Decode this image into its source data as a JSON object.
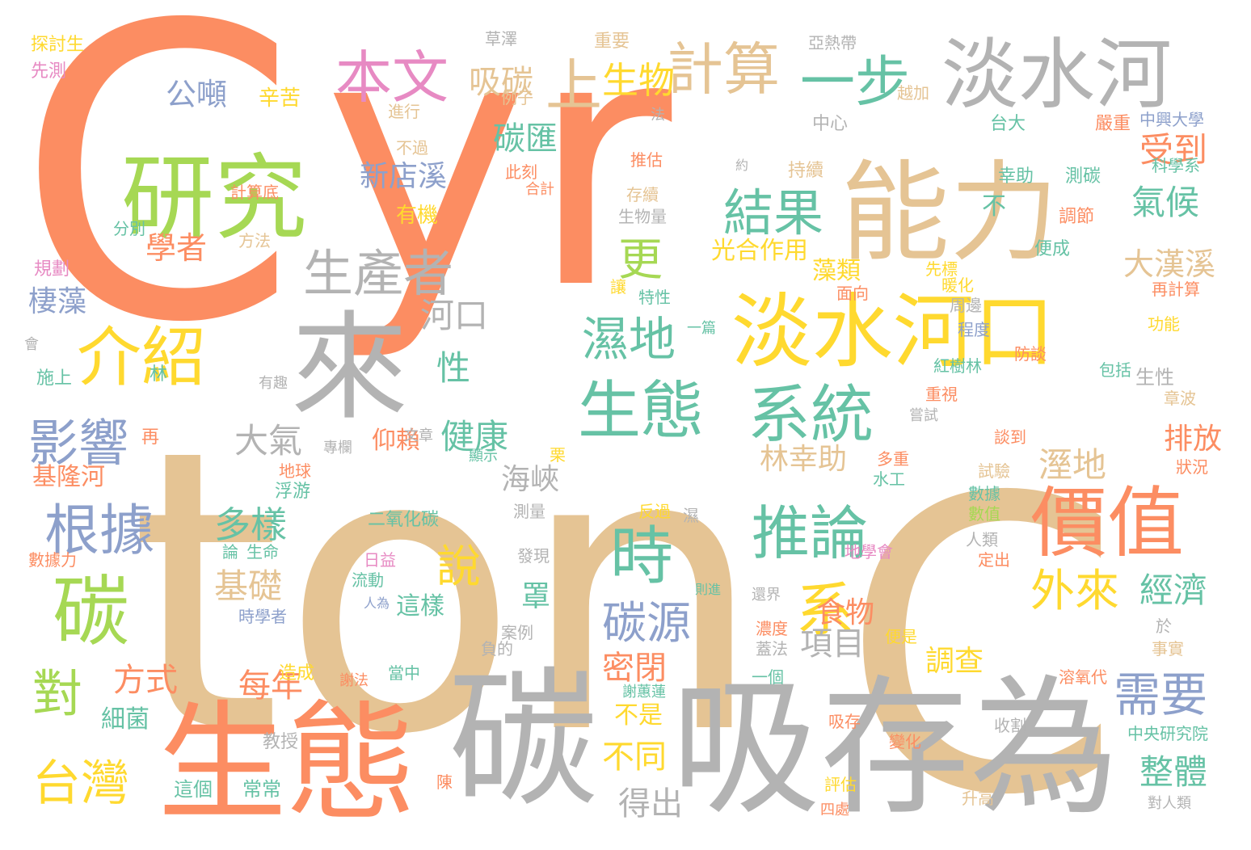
{
  "colors": {
    "orange": "#fc8d62",
    "tan": "#e5c494",
    "gray": "#b3b3b3",
    "green": "#a6d854",
    "yellow": "#ffd92f",
    "teal": "#66c2a5",
    "blue": "#8da0cb",
    "pink": "#e78ac3"
  },
  "words": [
    {
      "text": "C",
      "color": "orange"
    },
    {
      "text": "yr",
      "color": "orange"
    },
    {
      "text": "ton",
      "color": "tan"
    },
    {
      "text": "C",
      "color": "tan"
    },
    {
      "text": "碳",
      "color": "gray"
    },
    {
      "text": "吸存為",
      "color": "gray"
    },
    {
      "text": "生態",
      "color": "orange"
    },
    {
      "text": "研究",
      "color": "green"
    },
    {
      "text": "來",
      "color": "gray"
    },
    {
      "text": "能力",
      "color": "tan"
    },
    {
      "text": "淡水河",
      "color": "gray"
    },
    {
      "text": "淡水河口",
      "color": "yellow"
    },
    {
      "text": "價值",
      "color": "orange"
    },
    {
      "text": "生態",
      "color": "teal"
    },
    {
      "text": "系統",
      "color": "teal"
    },
    {
      "text": "介紹",
      "color": "yellow"
    },
    {
      "text": "碳",
      "color": "green"
    },
    {
      "text": "本文",
      "color": "pink"
    },
    {
      "text": "計算",
      "color": "tan"
    },
    {
      "text": "一步",
      "color": "teal"
    },
    {
      "text": "生產者",
      "color": "gray"
    },
    {
      "text": "結果",
      "color": "teal"
    },
    {
      "text": "推論",
      "color": "teal"
    },
    {
      "text": "根據",
      "color": "blue"
    },
    {
      "text": "影響",
      "color": "blue"
    },
    {
      "text": "時",
      "color": "teal"
    },
    {
      "text": "系",
      "color": "yellow"
    },
    {
      "text": "對",
      "color": "green"
    },
    {
      "text": "台灣",
      "color": "yellow"
    },
    {
      "text": "需要",
      "color": "blue"
    },
    {
      "text": "上",
      "color": "tan"
    },
    {
      "text": "生物",
      "color": "yellow"
    },
    {
      "text": "吸碳",
      "color": "tan"
    },
    {
      "text": "碳匯",
      "color": "teal"
    },
    {
      "text": "公噸",
      "color": "blue"
    },
    {
      "text": "學者",
      "color": "orange"
    },
    {
      "text": "更",
      "color": "green"
    },
    {
      "text": "河口",
      "color": "gray"
    },
    {
      "text": "濕地",
      "color": "teal"
    },
    {
      "text": "受到",
      "color": "orange"
    },
    {
      "text": "氣候",
      "color": "teal"
    },
    {
      "text": "大漢溪",
      "color": "tan"
    },
    {
      "text": "外來",
      "color": "yellow"
    },
    {
      "text": "經濟",
      "color": "teal"
    },
    {
      "text": "整體",
      "color": "teal"
    },
    {
      "text": "碳源",
      "color": "blue"
    },
    {
      "text": "說",
      "color": "yellow"
    },
    {
      "text": "多樣",
      "color": "teal"
    },
    {
      "text": "基礎",
      "color": "tan"
    },
    {
      "text": "每年",
      "color": "orange"
    },
    {
      "text": "方式",
      "color": "orange"
    },
    {
      "text": "項目",
      "color": "gray"
    },
    {
      "text": "密閉",
      "color": "orange"
    },
    {
      "text": "不同",
      "color": "yellow"
    },
    {
      "text": "得出",
      "color": "gray"
    },
    {
      "text": "健康",
      "color": "teal"
    },
    {
      "text": "性",
      "color": "teal"
    },
    {
      "text": "大氣",
      "color": "gray"
    },
    {
      "text": "林幸助",
      "color": "tan"
    },
    {
      "text": "溼地",
      "color": "tan"
    },
    {
      "text": "排放",
      "color": "orange"
    },
    {
      "text": "調查",
      "color": "yellow"
    },
    {
      "text": "食物",
      "color": "orange"
    },
    {
      "text": "罩",
      "color": "teal"
    },
    {
      "text": "海峽",
      "color": "gray"
    },
    {
      "text": "新店溪",
      "color": "blue"
    },
    {
      "text": "棲藻",
      "color": "blue"
    },
    {
      "text": "基隆河",
      "color": "orange"
    },
    {
      "text": "細菌",
      "color": "teal"
    },
    {
      "text": "不",
      "color": "teal"
    },
    {
      "text": "藻類",
      "color": "yellow"
    },
    {
      "text": "光合作用",
      "color": "yellow"
    },
    {
      "text": "仰賴",
      "color": "orange"
    },
    {
      "text": "這樣",
      "color": "teal"
    },
    {
      "text": "不是",
      "color": "yellow"
    },
    {
      "text": "辛苦",
      "color": "yellow"
    },
    {
      "text": "有機",
      "color": "yellow"
    },
    {
      "text": "進行",
      "color": "tan"
    },
    {
      "text": "不過",
      "color": "tan"
    },
    {
      "text": "例子",
      "color": "tan"
    },
    {
      "text": "此刻",
      "color": "orange"
    },
    {
      "text": "合計",
      "color": "orange"
    },
    {
      "text": "推估",
      "color": "orange"
    },
    {
      "text": "存續",
      "color": "tan"
    },
    {
      "text": "生物量",
      "color": "gray"
    },
    {
      "text": "持續",
      "color": "tan"
    },
    {
      "text": "中心",
      "color": "gray"
    },
    {
      "text": "嚴重",
      "color": "orange"
    },
    {
      "text": "中興大學",
      "color": "blue"
    },
    {
      "text": "科學系",
      "color": "teal"
    },
    {
      "text": "台大",
      "color": "teal"
    },
    {
      "text": "幸助",
      "color": "teal"
    },
    {
      "text": "測碳",
      "color": "teal"
    },
    {
      "text": "調節",
      "color": "orange"
    },
    {
      "text": "便成",
      "color": "teal"
    },
    {
      "text": "越加",
      "color": "tan"
    },
    {
      "text": "亞熱帶",
      "color": "gray"
    },
    {
      "text": "重要",
      "color": "tan"
    },
    {
      "text": "草澤",
      "color": "gray"
    },
    {
      "text": "探討生",
      "color": "yellow"
    },
    {
      "text": "先測",
      "color": "pink"
    },
    {
      "text": "規劃",
      "color": "pink"
    },
    {
      "text": "分別",
      "color": "teal"
    },
    {
      "text": "方法",
      "color": "tan"
    },
    {
      "text": "計算底",
      "color": "orange"
    },
    {
      "text": "施上",
      "color": "teal"
    },
    {
      "text": "林",
      "color": "teal"
    },
    {
      "text": "再",
      "color": "orange"
    },
    {
      "text": "面向",
      "color": "orange"
    },
    {
      "text": "先標",
      "color": "yellow"
    },
    {
      "text": "暖化",
      "color": "yellow"
    },
    {
      "text": "周邊",
      "color": "gray"
    },
    {
      "text": "再計算",
      "color": "orange"
    },
    {
      "text": "功能",
      "color": "yellow"
    },
    {
      "text": "程度",
      "color": "blue"
    },
    {
      "text": "紅樹林",
      "color": "teal"
    },
    {
      "text": "防談",
      "color": "orange"
    },
    {
      "text": "包括",
      "color": "teal"
    },
    {
      "text": "生性",
      "color": "gray"
    },
    {
      "text": "章波",
      "color": "tan"
    },
    {
      "text": "重視",
      "color": "orange"
    },
    {
      "text": "嘗試",
      "color": "gray"
    },
    {
      "text": "談到",
      "color": "orange"
    },
    {
      "text": "試驗",
      "color": "tan"
    },
    {
      "text": "數據",
      "color": "teal"
    },
    {
      "text": "數值",
      "color": "green"
    },
    {
      "text": "多重",
      "color": "orange"
    },
    {
      "text": "水工",
      "color": "teal"
    },
    {
      "text": "狀況",
      "color": "orange"
    },
    {
      "text": "人類",
      "color": "gray"
    },
    {
      "text": "定出",
      "color": "orange"
    },
    {
      "text": "反過",
      "color": "yellow"
    },
    {
      "text": "濕",
      "color": "gray"
    },
    {
      "text": "測量",
      "color": "gray"
    },
    {
      "text": "發現",
      "color": "gray"
    },
    {
      "text": "地學會",
      "color": "pink"
    },
    {
      "text": "濃度",
      "color": "orange"
    },
    {
      "text": "便是",
      "color": "yellow"
    },
    {
      "text": "蓋法",
      "color": "gray"
    },
    {
      "text": "一個",
      "color": "teal"
    },
    {
      "text": "事實",
      "color": "tan"
    },
    {
      "text": "溶氧代",
      "color": "orange"
    },
    {
      "text": "於",
      "color": "gray"
    },
    {
      "text": "收割",
      "color": "gray"
    },
    {
      "text": "中央研究院",
      "color": "teal"
    },
    {
      "text": "變化",
      "color": "orange"
    },
    {
      "text": "評估",
      "color": "yellow"
    },
    {
      "text": "四處",
      "color": "orange"
    },
    {
      "text": "升高",
      "color": "tan"
    },
    {
      "text": "對人類",
      "color": "gray"
    },
    {
      "text": "吸存",
      "color": "orange"
    },
    {
      "text": "謝蕙蓮",
      "color": "teal"
    },
    {
      "text": "當中",
      "color": "teal"
    },
    {
      "text": "謝法",
      "color": "orange"
    },
    {
      "text": "負的",
      "color": "gray"
    },
    {
      "text": "案例",
      "color": "gray"
    },
    {
      "text": "常常",
      "color": "teal"
    },
    {
      "text": "這個",
      "color": "teal"
    },
    {
      "text": "教授",
      "color": "gray"
    },
    {
      "text": "陳",
      "color": "orange"
    },
    {
      "text": "造成",
      "color": "yellow"
    },
    {
      "text": "時學者",
      "color": "blue"
    },
    {
      "text": "人為",
      "color": "blue"
    },
    {
      "text": "日益",
      "color": "pink"
    },
    {
      "text": "流動",
      "color": "teal"
    },
    {
      "text": "論",
      "color": "teal"
    },
    {
      "text": "生命",
      "color": "teal"
    },
    {
      "text": "數據力",
      "color": "orange"
    },
    {
      "text": "二氧化碳",
      "color": "teal"
    },
    {
      "text": "浮游",
      "color": "teal"
    },
    {
      "text": "地球",
      "color": "orange"
    },
    {
      "text": "專欄",
      "color": "gray"
    },
    {
      "text": "文章",
      "color": "gray"
    },
    {
      "text": "有趣",
      "color": "gray"
    },
    {
      "text": "顯示",
      "color": "teal"
    },
    {
      "text": "栗",
      "color": "yellow"
    },
    {
      "text": "會",
      "color": "gray"
    },
    {
      "text": "讓",
      "color": "yellow"
    },
    {
      "text": "特性",
      "color": "teal"
    },
    {
      "text": "一篇",
      "color": "teal"
    },
    {
      "text": "還界",
      "color": "gray"
    },
    {
      "text": "則進",
      "color": "teal"
    },
    {
      "text": "約",
      "color": "gray"
    },
    {
      "text": "法",
      "color": "gray"
    }
  ]
}
